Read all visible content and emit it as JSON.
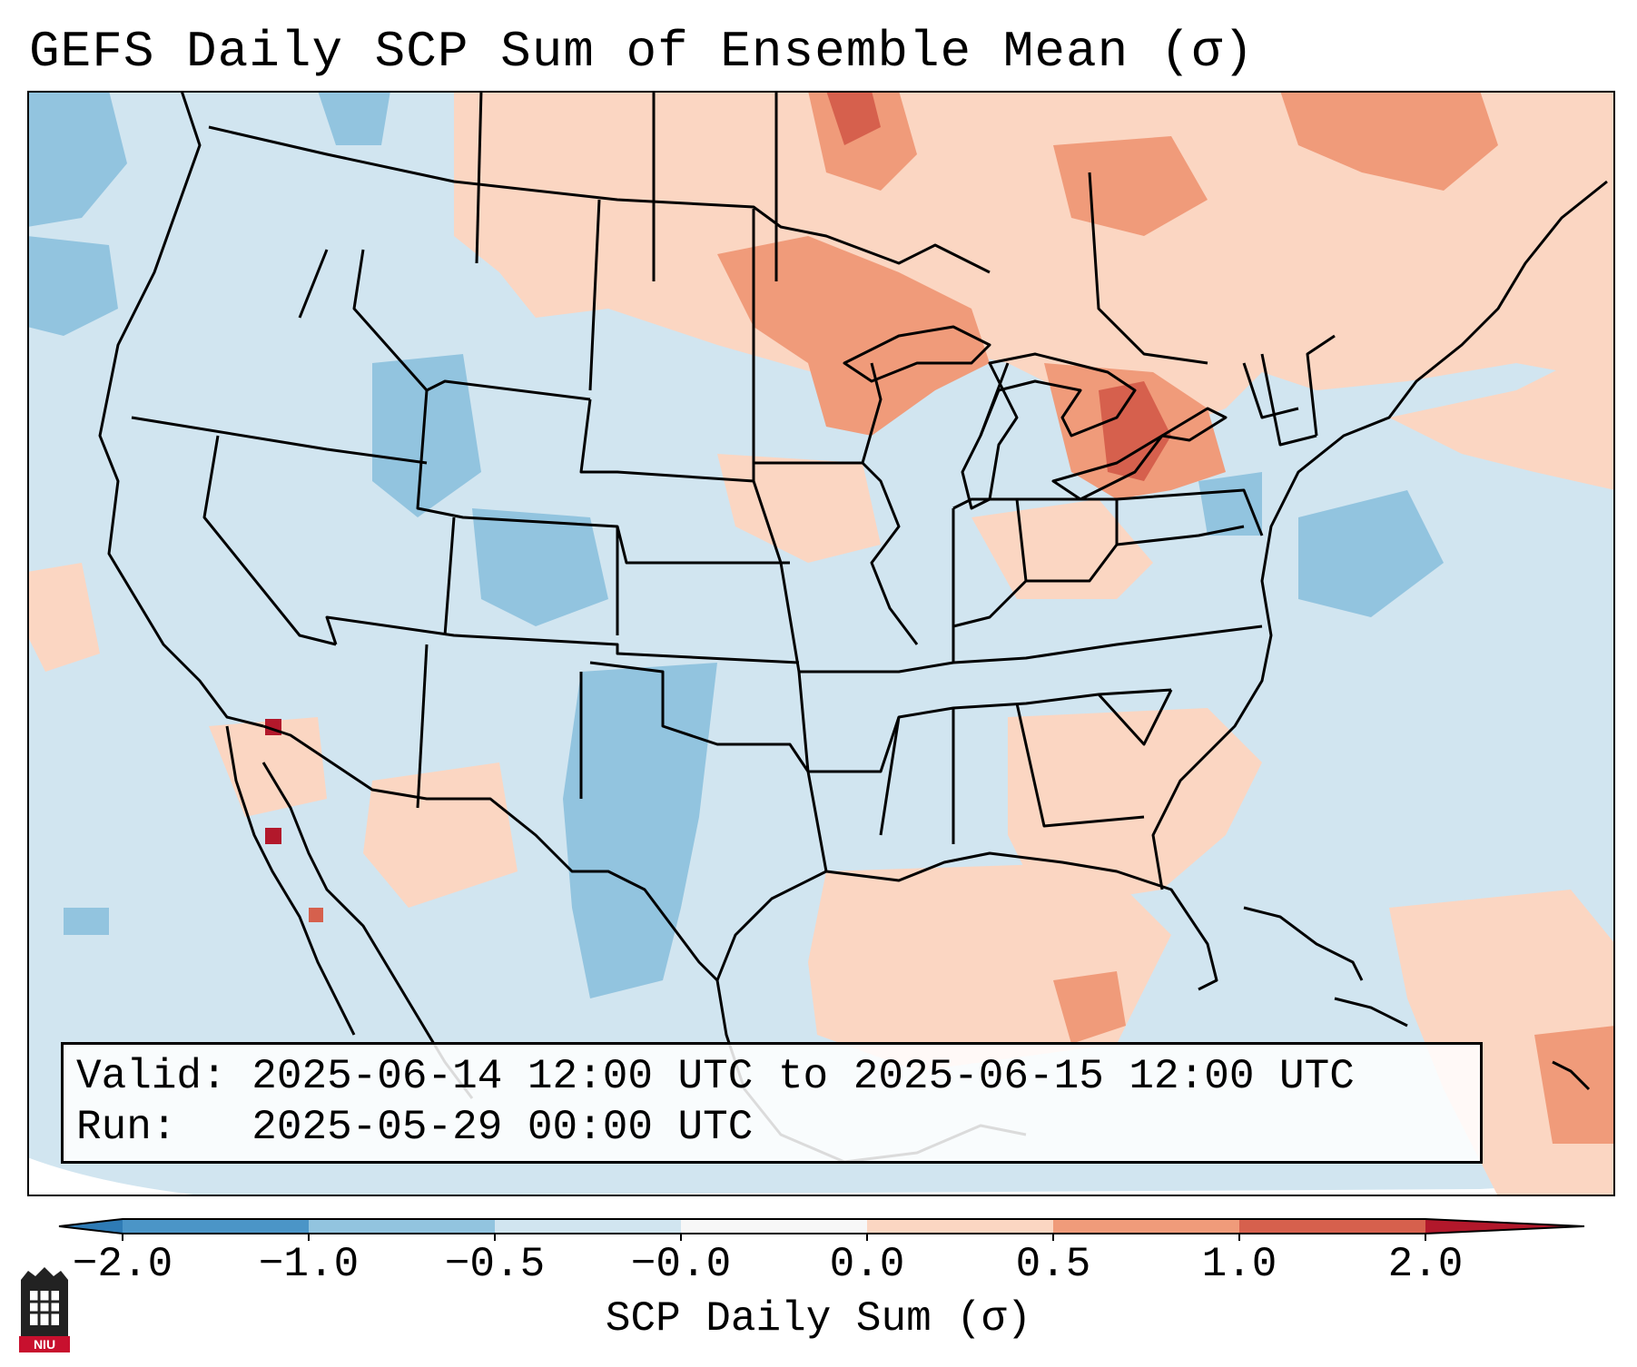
{
  "title": "GEFS Daily SCP Sum of Ensemble Mean (σ)",
  "info": {
    "valid_label": "Valid:",
    "valid_value": "2025-06-14 12:00 UTC to 2025-06-15 12:00 UTC",
    "run_label": "Run:",
    "run_value": "2025-05-29 00:00 UTC"
  },
  "colorbar": {
    "label": "SCP Daily Sum (σ)",
    "ticks": [
      "−2.0",
      "−1.0",
      "−0.5",
      "−0.0",
      "0.0",
      "0.5",
      "1.0",
      "2.0"
    ],
    "colors": [
      "#2e7bb5",
      "#4b95c7",
      "#92c4df",
      "#d1e5f0",
      "#f7f7f7",
      "#fbd6c2",
      "#f09b7a",
      "#d6604d",
      "#b2182b"
    ]
  },
  "logo": {
    "text": "NIU"
  },
  "map": {
    "ocean_color": "#d1e5f0",
    "land_color": "#d1e5f0"
  }
}
